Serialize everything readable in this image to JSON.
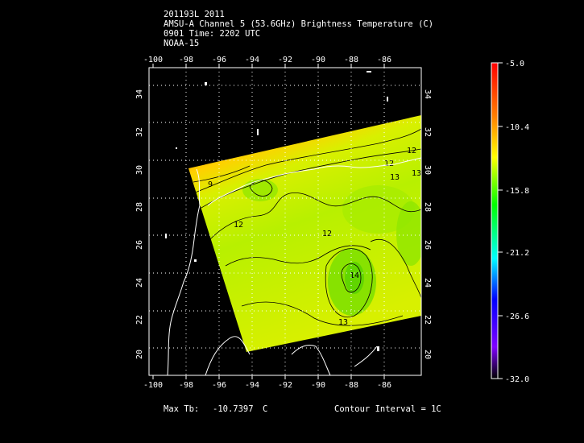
{
  "header": {
    "line1": "201193L 2011",
    "line2": "AMSU-A Channel 5 (53.6GHz) Brightness Temperature (C)",
    "line3": "0901 Time: 2202 UTC",
    "line4": "NOAA-15"
  },
  "map": {
    "lon_range": [
      -101,
      -84
    ],
    "lat_range": [
      19.3,
      35.5
    ],
    "lon_ticks": [
      "-100",
      "-98",
      "-96",
      "-94",
      "-92",
      "-90",
      "-88",
      "-86"
    ],
    "lat_ticks": [
      "20",
      "22",
      "24",
      "26",
      "28",
      "30",
      "32",
      "34"
    ],
    "contour_labels": [
      "9",
      "12",
      "12",
      "12",
      "13",
      "13",
      "13",
      "14",
      "12"
    ]
  },
  "colorbar": {
    "labels": [
      "-5.0",
      "-10.4",
      "-15.8",
      "-21.2",
      "-26.6",
      "-32.0"
    ],
    "colors": [
      "#ff0000",
      "#ff8000",
      "#ffff00",
      "#00ff00",
      "#00ffff",
      "#0000ff",
      "#8000ff",
      "#000000"
    ]
  },
  "footer": {
    "max_label": "Max Tb:",
    "max_value": "-10.7397",
    "max_unit": "C",
    "contour_interval": "Contour Interval = 1C"
  }
}
